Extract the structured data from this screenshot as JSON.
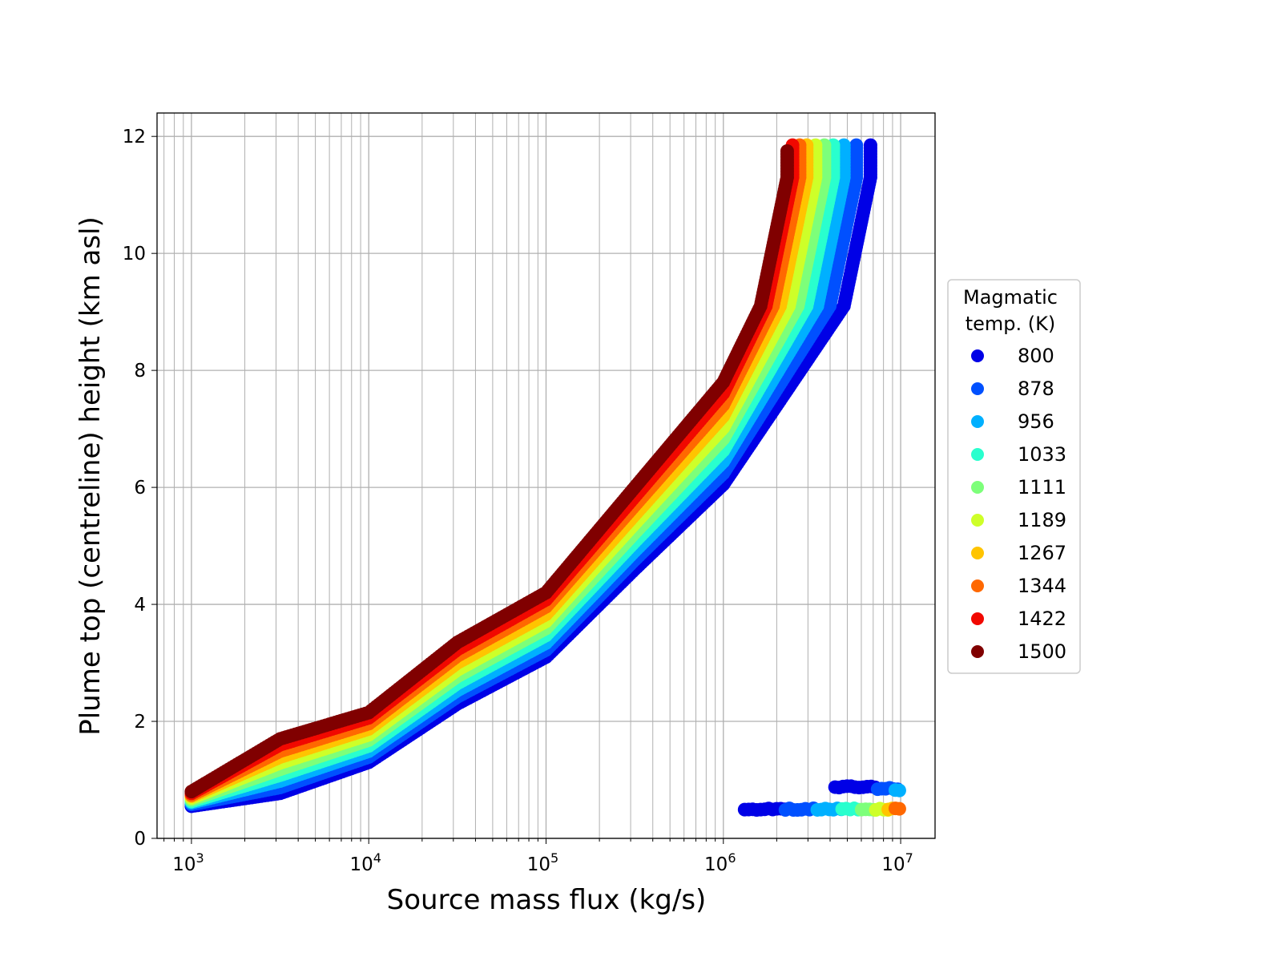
{
  "chart_data": {
    "type": "scatter",
    "title": "",
    "xlabel": "Source mass flux (kg/s)",
    "ylabel": "Plume top (centreline) height (km asl)",
    "xscale": "log",
    "xlim_log10": [
      2.806,
      7.194
    ],
    "ylim": [
      0,
      12.4
    ],
    "grid": "major and minor",
    "x_ticks": [
      {
        "base": "10",
        "exp": "3",
        "v": 3
      },
      {
        "base": "10",
        "exp": "4",
        "v": 4
      },
      {
        "base": "10",
        "exp": "5",
        "v": 5
      },
      {
        "base": "10",
        "exp": "6",
        "v": 6
      },
      {
        "base": "10",
        "exp": "7",
        "v": 7
      }
    ],
    "y_ticks": [
      {
        "label": "0",
        "v": 0
      },
      {
        "label": "2",
        "v": 2
      },
      {
        "label": "4",
        "v": 4
      },
      {
        "label": "6",
        "v": 6
      },
      {
        "label": "8",
        "v": 8
      },
      {
        "label": "10",
        "v": 10
      },
      {
        "label": "12",
        "v": 12
      }
    ],
    "legend": {
      "title_line1": "Magmatic",
      "title_line2": "temp. (K)",
      "placement": "right-outside"
    },
    "series": [
      {
        "name": "800",
        "color": "#0000e6",
        "points": [
          [
            3.0,
            0.55
          ],
          [
            3.5,
            0.77
          ],
          [
            4.0,
            1.3
          ],
          [
            4.5,
            2.3
          ],
          [
            5.0,
            3.1
          ],
          [
            5.5,
            4.6
          ],
          [
            6.0,
            6.05
          ],
          [
            6.68,
            9.1
          ],
          [
            6.83,
            11.3
          ],
          [
            6.83,
            11.85
          ]
        ]
      },
      {
        "name": "878",
        "color": "#0050ff",
        "points": [
          [
            3.0,
            0.58
          ],
          [
            3.5,
            0.87
          ],
          [
            4.0,
            1.39
          ],
          [
            4.5,
            2.42
          ],
          [
            5.0,
            3.22
          ],
          [
            5.5,
            4.76
          ],
          [
            6.0,
            6.24
          ],
          [
            6.6,
            9.1
          ],
          [
            6.75,
            11.3
          ],
          [
            6.75,
            11.85
          ]
        ]
      },
      {
        "name": "956",
        "color": "#00b0ff",
        "points": [
          [
            3.0,
            0.61
          ],
          [
            3.5,
            0.98
          ],
          [
            4.0,
            1.49
          ],
          [
            4.5,
            2.53
          ],
          [
            5.0,
            3.34
          ],
          [
            5.5,
            4.91
          ],
          [
            6.0,
            6.44
          ],
          [
            6.53,
            9.1
          ],
          [
            6.68,
            11.3
          ],
          [
            6.68,
            11.85
          ]
        ]
      },
      {
        "name": "1033",
        "color": "#29ffce",
        "points": [
          [
            3.0,
            0.63
          ],
          [
            3.5,
            1.08
          ],
          [
            4.0,
            1.58
          ],
          [
            4.5,
            2.65
          ],
          [
            5.0,
            3.47
          ],
          [
            5.5,
            5.07
          ],
          [
            6.0,
            6.63
          ],
          [
            6.47,
            9.1
          ],
          [
            6.62,
            11.3
          ],
          [
            6.62,
            11.85
          ]
        ]
      },
      {
        "name": "1111",
        "color": "#7dff7a",
        "points": [
          [
            3.0,
            0.66
          ],
          [
            3.5,
            1.18
          ],
          [
            4.0,
            1.68
          ],
          [
            4.5,
            2.77
          ],
          [
            5.0,
            3.59
          ],
          [
            5.5,
            5.22
          ],
          [
            6.0,
            6.83
          ],
          [
            6.42,
            9.1
          ],
          [
            6.57,
            11.3
          ],
          [
            6.57,
            11.85
          ]
        ]
      },
      {
        "name": "1189",
        "color": "#ceff29",
        "points": [
          [
            3.0,
            0.69
          ],
          [
            3.5,
            1.29
          ],
          [
            4.0,
            1.77
          ],
          [
            4.5,
            2.88
          ],
          [
            5.0,
            3.71
          ],
          [
            5.5,
            5.38
          ],
          [
            6.0,
            7.02
          ],
          [
            6.37,
            9.1
          ],
          [
            6.52,
            11.3
          ],
          [
            6.52,
            11.85
          ]
        ]
      },
      {
        "name": "1267",
        "color": "#ffc400",
        "points": [
          [
            3.0,
            0.72
          ],
          [
            3.5,
            1.39
          ],
          [
            4.0,
            1.87
          ],
          [
            4.5,
            3.0
          ],
          [
            5.0,
            3.83
          ],
          [
            5.5,
            5.53
          ],
          [
            6.0,
            7.22
          ],
          [
            6.32,
            9.1
          ],
          [
            6.47,
            11.3
          ],
          [
            6.47,
            11.85
          ]
        ]
      },
      {
        "name": "1344",
        "color": "#ff6800",
        "points": [
          [
            3.0,
            0.74
          ],
          [
            3.5,
            1.49
          ],
          [
            4.0,
            1.96
          ],
          [
            4.5,
            3.12
          ],
          [
            5.0,
            3.96
          ],
          [
            5.5,
            5.69
          ],
          [
            6.0,
            7.41
          ],
          [
            6.28,
            9.1
          ],
          [
            6.43,
            11.3
          ],
          [
            6.43,
            11.85
          ]
        ]
      },
      {
        "name": "1422",
        "color": "#f10800",
        "points": [
          [
            3.0,
            0.77
          ],
          [
            3.5,
            1.6
          ],
          [
            4.0,
            2.06
          ],
          [
            4.5,
            3.23
          ],
          [
            5.0,
            4.08
          ],
          [
            5.5,
            5.84
          ],
          [
            6.0,
            7.61
          ],
          [
            6.24,
            9.1
          ],
          [
            6.39,
            11.3
          ],
          [
            6.39,
            11.85
          ]
        ]
      },
      {
        "name": "1500",
        "color": "#800000",
        "points": [
          [
            3.0,
            0.8
          ],
          [
            3.5,
            1.7
          ],
          [
            4.0,
            2.15
          ],
          [
            4.5,
            3.35
          ],
          [
            5.0,
            4.2
          ],
          [
            5.5,
            6.0
          ],
          [
            6.0,
            7.8
          ],
          [
            6.21,
            9.1
          ],
          [
            6.36,
            11.3
          ],
          [
            6.36,
            11.75
          ]
        ]
      }
    ],
    "low_branch": [
      {
        "series": "800",
        "x": [
          6.12,
          6.35
        ],
        "y": 0.5
      },
      {
        "series": "878",
        "x": [
          6.35,
          6.53
        ],
        "y": 0.5
      },
      {
        "series": "956",
        "x": [
          6.53,
          6.67
        ],
        "y": 0.5
      },
      {
        "series": "1033",
        "x": [
          6.67,
          6.78
        ],
        "y": 0.5
      },
      {
        "series": "1111",
        "x": [
          6.78,
          6.86
        ],
        "y": 0.5
      },
      {
        "series": "1189",
        "x": [
          6.86,
          6.93
        ],
        "y": 0.5
      },
      {
        "series": "1267",
        "x": [
          6.93,
          6.97
        ],
        "y": 0.5
      },
      {
        "series": "1344",
        "x": [
          6.97,
          7.0
        ],
        "y": 0.5
      },
      {
        "series": "800",
        "x": [
          6.63,
          6.87
        ],
        "y": 0.88
      },
      {
        "series": "878",
        "x": [
          6.87,
          7.0
        ],
        "y": 0.85
      },
      {
        "series": "956",
        "x": [
          6.97,
          7.0
        ],
        "y": 0.83
      }
    ]
  }
}
